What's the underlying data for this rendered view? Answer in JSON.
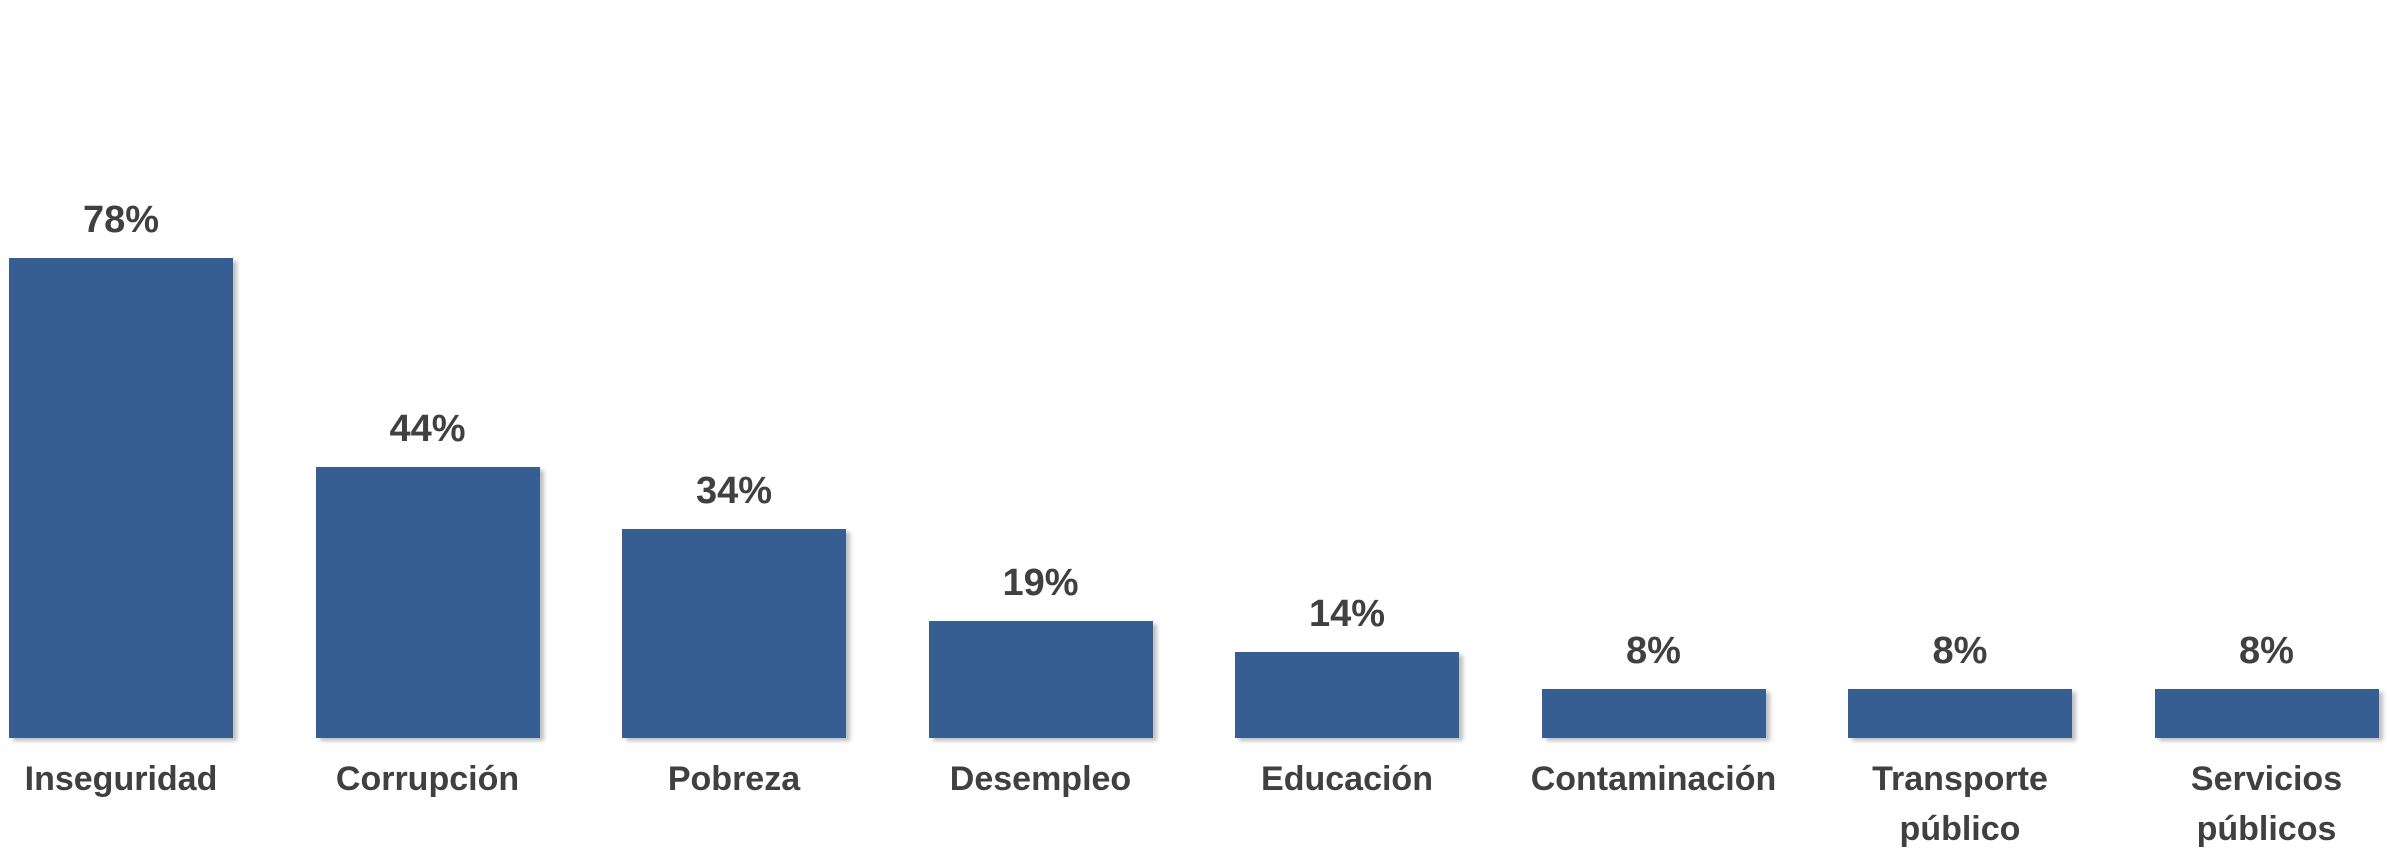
{
  "chart_data": {
    "type": "bar",
    "categories": [
      "Inseguridad",
      "Corrupción",
      "Pobreza",
      "Desempleo",
      "Educación",
      "Contaminación",
      "Transporte público",
      "Servicios públicos"
    ],
    "values": [
      78,
      44,
      34,
      19,
      14,
      8,
      8,
      8
    ],
    "value_labels": [
      "78%",
      "44%",
      "34%",
      "19%",
      "14%",
      "8%",
      "8%",
      "8%"
    ],
    "color": "#375e92"
  }
}
